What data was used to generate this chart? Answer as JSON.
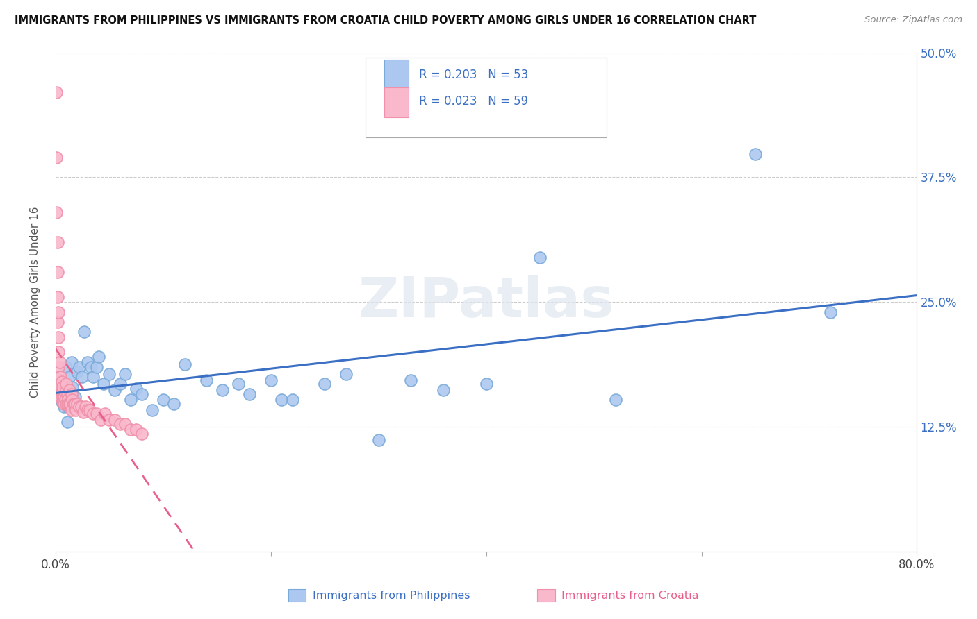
{
  "title": "IMMIGRANTS FROM PHILIPPINES VS IMMIGRANTS FROM CROATIA CHILD POVERTY AMONG GIRLS UNDER 16 CORRELATION CHART",
  "source": "Source: ZipAtlas.com",
  "xlabel_philippines": "Immigrants from Philippines",
  "xlabel_croatia": "Immigrants from Croatia",
  "ylabel": "Child Poverty Among Girls Under 16",
  "xlim": [
    0.0,
    0.8
  ],
  "ylim": [
    0.0,
    0.5
  ],
  "xtick_positions": [
    0.0,
    0.2,
    0.4,
    0.6,
    0.8
  ],
  "xtick_labels": [
    "0.0%",
    "",
    "",
    "",
    "80.0%"
  ],
  "ytick_positions": [
    0.0,
    0.125,
    0.25,
    0.375,
    0.5
  ],
  "ytick_labels_right": [
    "",
    "12.5%",
    "25.0%",
    "37.5%",
    "50.0%"
  ],
  "philippines_R": 0.203,
  "philippines_N": 53,
  "croatia_R": 0.023,
  "croatia_N": 59,
  "philippines_color": "#adc8f0",
  "croatia_color": "#f9b8cb",
  "philippines_edge_color": "#7aaad8",
  "croatia_edge_color": "#f090aa",
  "philippines_trend_color": "#3a6fc4",
  "croatia_trend_color": "#e8608a",
  "legend_text_color": "#3a6fc4",
  "watermark": "ZIPatlas",
  "philippines_x": [
    0.002,
    0.003,
    0.004,
    0.005,
    0.006,
    0.007,
    0.008,
    0.009,
    0.01,
    0.011,
    0.012,
    0.013,
    0.015,
    0.016,
    0.018,
    0.02,
    0.022,
    0.025,
    0.027,
    0.03,
    0.033,
    0.035,
    0.038,
    0.04,
    0.045,
    0.05,
    0.055,
    0.06,
    0.065,
    0.07,
    0.075,
    0.08,
    0.09,
    0.1,
    0.11,
    0.12,
    0.14,
    0.155,
    0.17,
    0.18,
    0.2,
    0.21,
    0.22,
    0.25,
    0.27,
    0.3,
    0.33,
    0.36,
    0.4,
    0.45,
    0.52,
    0.65,
    0.72
  ],
  "philippines_y": [
    0.175,
    0.16,
    0.155,
    0.165,
    0.15,
    0.17,
    0.145,
    0.165,
    0.185,
    0.13,
    0.145,
    0.175,
    0.19,
    0.165,
    0.155,
    0.18,
    0.185,
    0.175,
    0.22,
    0.19,
    0.185,
    0.175,
    0.185,
    0.195,
    0.168,
    0.178,
    0.162,
    0.168,
    0.178,
    0.152,
    0.163,
    0.158,
    0.142,
    0.152,
    0.148,
    0.188,
    0.172,
    0.162,
    0.168,
    0.158,
    0.172,
    0.152,
    0.152,
    0.168,
    0.178,
    0.112,
    0.172,
    0.162,
    0.168,
    0.295,
    0.152,
    0.398,
    0.24
  ],
  "croatia_x": [
    0.001,
    0.001,
    0.001,
    0.002,
    0.002,
    0.002,
    0.002,
    0.003,
    0.003,
    0.003,
    0.003,
    0.004,
    0.004,
    0.004,
    0.005,
    0.005,
    0.005,
    0.006,
    0.006,
    0.007,
    0.007,
    0.007,
    0.008,
    0.008,
    0.009,
    0.009,
    0.01,
    0.01,
    0.011,
    0.011,
    0.012,
    0.012,
    0.013,
    0.013,
    0.014,
    0.015,
    0.015,
    0.016,
    0.017,
    0.018,
    0.019,
    0.02,
    0.022,
    0.024,
    0.026,
    0.028,
    0.03,
    0.032,
    0.035,
    0.038,
    0.042,
    0.046,
    0.05,
    0.055,
    0.06,
    0.065,
    0.07,
    0.075,
    0.08
  ],
  "croatia_y": [
    0.46,
    0.395,
    0.34,
    0.31,
    0.28,
    0.255,
    0.23,
    0.24,
    0.215,
    0.2,
    0.185,
    0.19,
    0.175,
    0.165,
    0.175,
    0.165,
    0.155,
    0.17,
    0.16,
    0.165,
    0.155,
    0.15,
    0.155,
    0.148,
    0.16,
    0.152,
    0.168,
    0.148,
    0.158,
    0.148,
    0.153,
    0.148,
    0.162,
    0.148,
    0.148,
    0.158,
    0.142,
    0.152,
    0.148,
    0.148,
    0.142,
    0.148,
    0.145,
    0.145,
    0.14,
    0.145,
    0.142,
    0.142,
    0.138,
    0.138,
    0.132,
    0.138,
    0.132,
    0.132,
    0.128,
    0.128,
    0.122,
    0.122,
    0.118
  ],
  "grid_color": "#cccccc",
  "spine_color": "#aaaaaa"
}
